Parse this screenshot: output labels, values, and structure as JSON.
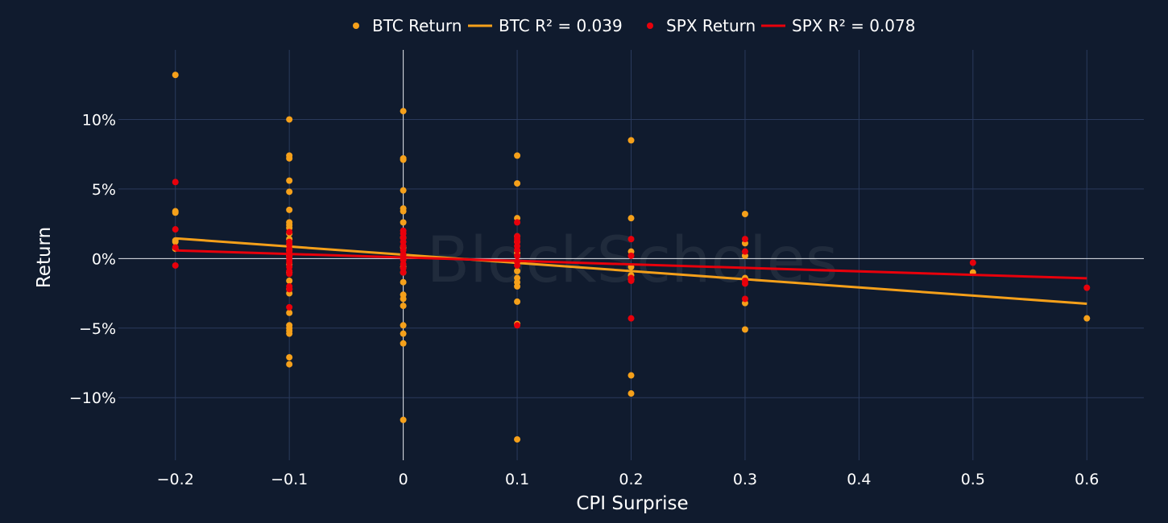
{
  "chart_data": {
    "type": "scatter",
    "xlabel": "CPI Surprise",
    "ylabel": "Return",
    "xlim": [
      -0.25,
      0.65
    ],
    "ylim": [
      -14.5,
      15
    ],
    "x_ticks": [
      -0.2,
      -0.1,
      0,
      0.1,
      0.2,
      0.3,
      0.4,
      0.5,
      0.6
    ],
    "x_tick_labels": [
      "−0.2",
      "−0.1",
      "0",
      "0.1",
      "0.2",
      "0.3",
      "0.4",
      "0.5",
      "0.6"
    ],
    "y_ticks": [
      -10,
      -5,
      0,
      5,
      10
    ],
    "y_tick_labels": [
      "−10%",
      "−5%",
      "0%",
      "5%",
      "10%"
    ],
    "grid": true,
    "legend_position": "top-center",
    "watermark": "BlockScholes",
    "series": [
      {
        "name": "BTC Return",
        "kind": "scatter",
        "color": "#f5a01a",
        "points": [
          [
            -0.2,
            13.2
          ],
          [
            -0.2,
            3.4
          ],
          [
            -0.2,
            3.3
          ],
          [
            -0.2,
            1.3
          ],
          [
            -0.2,
            1.2
          ],
          [
            -0.2,
            0.7
          ],
          [
            -0.1,
            10.0
          ],
          [
            -0.1,
            7.4
          ],
          [
            -0.1,
            7.2
          ],
          [
            -0.1,
            5.6
          ],
          [
            -0.1,
            4.8
          ],
          [
            -0.1,
            3.5
          ],
          [
            -0.1,
            2.6
          ],
          [
            -0.1,
            2.4
          ],
          [
            -0.1,
            2.2
          ],
          [
            -0.1,
            1.8
          ],
          [
            -0.1,
            1.4
          ],
          [
            -0.1,
            1.0
          ],
          [
            -0.1,
            0.6
          ],
          [
            -0.1,
            0.2
          ],
          [
            -0.1,
            -0.4
          ],
          [
            -0.1,
            -1.0
          ],
          [
            -0.1,
            -1.6
          ],
          [
            -0.1,
            -2.2
          ],
          [
            -0.1,
            -2.5
          ],
          [
            -0.1,
            -3.9
          ],
          [
            -0.1,
            -4.8
          ],
          [
            -0.1,
            -5.0
          ],
          [
            -0.1,
            -5.2
          ],
          [
            -0.1,
            -5.4
          ],
          [
            -0.1,
            -7.1
          ],
          [
            -0.1,
            -7.6
          ],
          [
            0,
            10.6
          ],
          [
            0,
            7.2
          ],
          [
            0,
            7.1
          ],
          [
            0,
            4.9
          ],
          [
            0,
            3.6
          ],
          [
            0,
            3.4
          ],
          [
            0,
            2.6
          ],
          [
            0,
            1.5
          ],
          [
            0,
            0.8
          ],
          [
            0,
            0.1
          ],
          [
            0,
            -0.6
          ],
          [
            0,
            -1.0
          ],
          [
            0,
            -1.7
          ],
          [
            0,
            -2.6
          ],
          [
            0,
            -2.9
          ],
          [
            0,
            -3.4
          ],
          [
            0,
            -4.8
          ],
          [
            0,
            -5.4
          ],
          [
            0,
            -6.1
          ],
          [
            0,
            -11.6
          ],
          [
            0.1,
            7.4
          ],
          [
            0.1,
            5.4
          ],
          [
            0.1,
            2.9
          ],
          [
            0.1,
            1.6
          ],
          [
            0.1,
            1.2
          ],
          [
            0.1,
            0.4
          ],
          [
            0.1,
            -0.3
          ],
          [
            0.1,
            -0.9
          ],
          [
            0.1,
            -1.4
          ],
          [
            0.1,
            -1.7
          ],
          [
            0.1,
            -2.0
          ],
          [
            0.1,
            -3.1
          ],
          [
            0.1,
            -4.7
          ],
          [
            0.1,
            -13.0
          ],
          [
            0.2,
            8.5
          ],
          [
            0.2,
            2.9
          ],
          [
            0.2,
            0.5
          ],
          [
            0.2,
            -0.6
          ],
          [
            0.2,
            -1.2
          ],
          [
            0.2,
            -1.5
          ],
          [
            0.2,
            -8.4
          ],
          [
            0.2,
            -9.7
          ],
          [
            0.3,
            3.2
          ],
          [
            0.3,
            1.1
          ],
          [
            0.3,
            0.2
          ],
          [
            0.3,
            -1.4
          ],
          [
            0.3,
            -3.2
          ],
          [
            0.3,
            -5.1
          ],
          [
            0.5,
            -1.0
          ],
          [
            0.6,
            -4.3
          ]
        ]
      },
      {
        "name": "BTC R² = 0.039",
        "kind": "line",
        "color": "#f5a01a",
        "points": [
          [
            -0.2,
            1.45
          ],
          [
            0.6,
            -3.25
          ]
        ]
      },
      {
        "name": "SPX Return",
        "kind": "scatter",
        "color": "#e8000b",
        "points": [
          [
            -0.2,
            5.5
          ],
          [
            -0.2,
            2.1
          ],
          [
            -0.2,
            0.8
          ],
          [
            -0.2,
            -0.5
          ],
          [
            -0.1,
            1.9
          ],
          [
            -0.1,
            1.2
          ],
          [
            -0.1,
            1.0
          ],
          [
            -0.1,
            0.7
          ],
          [
            -0.1,
            0.5
          ],
          [
            -0.1,
            0.3
          ],
          [
            -0.1,
            0.1
          ],
          [
            -0.1,
            -0.1
          ],
          [
            -0.1,
            -0.3
          ],
          [
            -0.1,
            -0.6
          ],
          [
            -0.1,
            -0.9
          ],
          [
            -0.1,
            -1.1
          ],
          [
            -0.1,
            -2.0
          ],
          [
            -0.1,
            -2.2
          ],
          [
            -0.1,
            -3.5
          ],
          [
            0,
            2.0
          ],
          [
            0,
            1.8
          ],
          [
            0,
            1.5
          ],
          [
            0,
            1.2
          ],
          [
            0,
            0.9
          ],
          [
            0,
            0.6
          ],
          [
            0,
            0.3
          ],
          [
            0,
            0.1
          ],
          [
            0,
            -0.1
          ],
          [
            0,
            -0.4
          ],
          [
            0,
            -0.7
          ],
          [
            0,
            -1.0
          ],
          [
            0.1,
            2.6
          ],
          [
            0.1,
            1.6
          ],
          [
            0.1,
            1.4
          ],
          [
            0.1,
            1.2
          ],
          [
            0.1,
            0.9
          ],
          [
            0.1,
            0.6
          ],
          [
            0.1,
            0.2
          ],
          [
            0.1,
            -0.2
          ],
          [
            0.1,
            -0.5
          ],
          [
            0.1,
            -4.8
          ],
          [
            0.2,
            1.4
          ],
          [
            0.2,
            0.2
          ],
          [
            0.2,
            -1.4
          ],
          [
            0.2,
            -1.6
          ],
          [
            0.2,
            -4.3
          ],
          [
            0.3,
            1.4
          ],
          [
            0.3,
            0.5
          ],
          [
            0.3,
            -1.6
          ],
          [
            0.3,
            -1.8
          ],
          [
            0.3,
            -2.9
          ],
          [
            0.5,
            -0.3
          ],
          [
            0.6,
            -2.1
          ]
        ]
      },
      {
        "name": "SPX R² = 0.078",
        "kind": "line",
        "color": "#e8000b",
        "points": [
          [
            -0.2,
            0.58
          ],
          [
            0.6,
            -1.42
          ]
        ]
      }
    ]
  }
}
